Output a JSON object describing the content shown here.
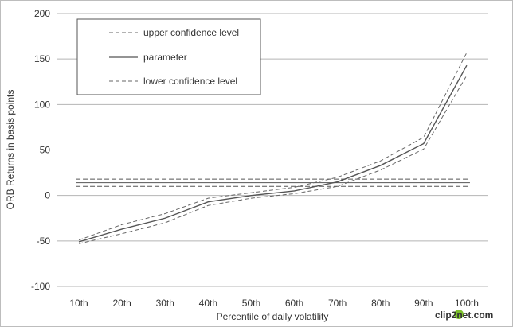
{
  "chart_data": {
    "type": "line",
    "title": "",
    "xlabel": "Percentile of daily volatility",
    "ylabel": "ORB Returns in basis points",
    "categories": [
      "10th",
      "20th",
      "30th",
      "40th",
      "50th",
      "60th",
      "70th",
      "80th",
      "90th",
      "100th"
    ],
    "ylim": [
      -100,
      200
    ],
    "yticks": [
      -100,
      -50,
      0,
      50,
      100,
      150,
      200
    ],
    "ytick_labels": [
      "-100",
      "-50",
      "0",
      "50",
      "100",
      "150",
      "200"
    ],
    "grid": "horizontal",
    "legend_position": "top-left",
    "series": [
      {
        "name": "upper confidence level",
        "style": "dashed",
        "color": "#666666",
        "values": [
          -49,
          -32,
          -20,
          -3,
          3,
          9,
          20,
          38,
          64,
          157
        ]
      },
      {
        "name": "parameter",
        "style": "solid",
        "color": "#555555",
        "values": [
          -51,
          -37,
          -25,
          -7,
          0,
          5,
          15,
          33,
          57,
          143
        ]
      },
      {
        "name": "lower confidence level",
        "style": "dashed",
        "color": "#666666",
        "values": [
          -53,
          -42,
          -30,
          -11,
          -3,
          2,
          10,
          28,
          51,
          132
        ]
      }
    ],
    "reference_lines": [
      {
        "value": 18,
        "style": "dashed",
        "color": "#555555"
      },
      {
        "value": 14,
        "style": "solid",
        "color": "#555555"
      },
      {
        "value": 10,
        "style": "dashed",
        "color": "#555555"
      }
    ]
  },
  "watermark": {
    "text": "clip2net.com",
    "colors": {
      "primary": "#1a73c6",
      "accent": "#7bbf2a"
    }
  }
}
